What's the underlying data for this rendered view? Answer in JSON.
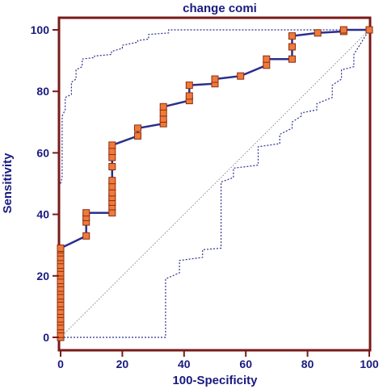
{
  "chart_data": {
    "type": "line",
    "title": "change comi",
    "xlabel": "100-Specificity",
    "ylabel": "Sensitivity",
    "xlim": [
      0,
      100
    ],
    "ylim": [
      0,
      100
    ],
    "x_ticks": [
      "0",
      "20",
      "40",
      "60",
      "80",
      "100"
    ],
    "y_ticks": [
      "0",
      "20",
      "40",
      "60",
      "80",
      "100"
    ],
    "grid": false,
    "legend": "none",
    "colors": {
      "frame": "#7a1a1a",
      "text": "#1a1a80",
      "curve": "#2b2f8f",
      "marker_fill": "#f07a3a",
      "marker_edge": "#8a2e10",
      "ci_band": "#2b2f8f",
      "reference": "#8a8a8a"
    },
    "series": [
      {
        "role": "roc-curve",
        "x": [
          0,
          0,
          0,
          0,
          0,
          0,
          0,
          0,
          0,
          0,
          0,
          0,
          0,
          0,
          0,
          0,
          0,
          0,
          0,
          0,
          0,
          0,
          0,
          0,
          0,
          0,
          0,
          0,
          0,
          8.3,
          8.3,
          8.3,
          8.3,
          16.7,
          16.7,
          16.7,
          16.7,
          16.7,
          16.7,
          16.7,
          16.7,
          16.7,
          16.7,
          16.7,
          25,
          25,
          33.3,
          33.3,
          33.3,
          33.3,
          41.7,
          41.7,
          41.7,
          50,
          50,
          58.3,
          66.7,
          66.7,
          75,
          75,
          75,
          83.3,
          91.7,
          91.7,
          100
        ],
        "y": [
          0,
          1,
          2.5,
          3.5,
          5,
          6,
          7.5,
          8.5,
          10,
          11,
          12.5,
          13.5,
          15,
          16,
          17.5,
          18.5,
          20,
          21,
          22.5,
          23.5,
          25,
          26,
          27.5,
          28.5,
          29,
          29,
          29,
          29,
          29,
          33,
          37.5,
          39,
          40.5,
          40.5,
          42.5,
          44,
          45.5,
          47,
          49,
          51,
          55.5,
          58.5,
          60.5,
          62.5,
          65.5,
          68,
          69.5,
          71,
          73,
          75,
          77,
          78.5,
          82,
          82.5,
          84,
          85,
          88.5,
          90.5,
          90.5,
          94.5,
          98,
          99,
          99.5,
          100,
          100
        ]
      },
      {
        "role": "ci-upper",
        "x": [
          0,
          0.5,
          0.5,
          1.5,
          1.5,
          3.5,
          3.5,
          5,
          5,
          7,
          7,
          11,
          11,
          16.5,
          16.5,
          20,
          20,
          25,
          25,
          28.5,
          28.5,
          35,
          35,
          100
        ],
        "y": [
          50,
          52,
          72,
          74,
          78,
          79,
          83,
          84,
          87,
          88,
          90.5,
          91,
          91.5,
          92,
          93,
          94,
          95,
          96,
          96.5,
          97,
          98.5,
          99,
          100,
          100
        ]
      },
      {
        "role": "ci-lower",
        "x": [
          0,
          34,
          34,
          38.5,
          38.5,
          46,
          46,
          52,
          52,
          56,
          56,
          64,
          64,
          71,
          71,
          75,
          75,
          78,
          78,
          83,
          83,
          88,
          88,
          91,
          91,
          95,
          95,
          100
        ],
        "y": [
          0,
          0,
          19,
          21,
          25,
          26,
          28.5,
          29,
          50.5,
          52,
          55,
          56,
          62,
          63,
          66,
          68,
          70,
          72,
          73,
          74,
          76,
          78,
          82,
          84,
          87,
          88,
          92,
          100
        ]
      },
      {
        "role": "reference-diagonal",
        "x": [
          0,
          100
        ],
        "y": [
          0,
          100
        ]
      }
    ]
  }
}
